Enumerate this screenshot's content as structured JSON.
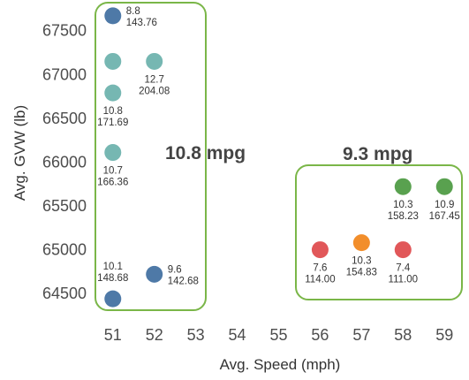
{
  "chart_data": {
    "type": "scatter",
    "title": "",
    "xlabel": "Avg. Speed (mph)",
    "ylabel": "Avg. GVW (lb)",
    "xlim": [
      50.6,
      59.4
    ],
    "ylim": [
      64320,
      67800
    ],
    "x_ticks": [
      "51",
      "52",
      "53",
      "54",
      "55",
      "56",
      "57",
      "58",
      "59"
    ],
    "y_ticks": [
      "64500",
      "65000",
      "65500",
      "66000",
      "66500",
      "67000",
      "67500"
    ],
    "grid": false,
    "points": [
      {
        "x": 51,
        "y": 67670,
        "label1": "8.8",
        "label2": "143.76",
        "color": "#4e79a7",
        "label_pos": "right"
      },
      {
        "x": 51,
        "y": 67150,
        "label1": "",
        "label2": "",
        "color": "#76b7b2",
        "label_pos": "none"
      },
      {
        "x": 52,
        "y": 67150,
        "label1": "12.7",
        "label2": "204.08",
        "color": "#76b7b2",
        "label_pos": "below"
      },
      {
        "x": 51,
        "y": 66790,
        "label1": "10.8",
        "label2": "171.69",
        "color": "#76b7b2",
        "label_pos": "below"
      },
      {
        "x": 51,
        "y": 66110,
        "label1": "10.7",
        "label2": "166.36",
        "color": "#76b7b2",
        "label_pos": "below"
      },
      {
        "x": 52,
        "y": 64720,
        "label1": "9.6",
        "label2": "142.68",
        "color": "#4e79a7",
        "label_pos": "right"
      },
      {
        "x": 51,
        "y": 64440,
        "label1": "10.1",
        "label2": "148.68",
        "color": "#4e79a7",
        "label_pos": "above"
      },
      {
        "x": 58,
        "y": 65720,
        "label1": "10.3",
        "label2": "158.23",
        "color": "#59a14f",
        "label_pos": "below"
      },
      {
        "x": 59,
        "y": 65720,
        "label1": "10.9",
        "label2": "167.45",
        "color": "#59a14f",
        "label_pos": "below"
      },
      {
        "x": 56,
        "y": 65000,
        "label1": "7.6",
        "label2": "114.00",
        "color": "#e15759",
        "label_pos": "below"
      },
      {
        "x": 57,
        "y": 65080,
        "label1": "10.3",
        "label2": "154.83",
        "color": "#f28e2b",
        "label_pos": "below"
      },
      {
        "x": 58,
        "y": 65000,
        "label1": "7.4",
        "label2": "111.00",
        "color": "#e15759",
        "label_pos": "below"
      }
    ],
    "annotations": [
      {
        "text": "10.8 mpg",
        "box_color": "#7ab648"
      },
      {
        "text": "9.3 mpg",
        "box_color": "#7ab648"
      }
    ]
  }
}
